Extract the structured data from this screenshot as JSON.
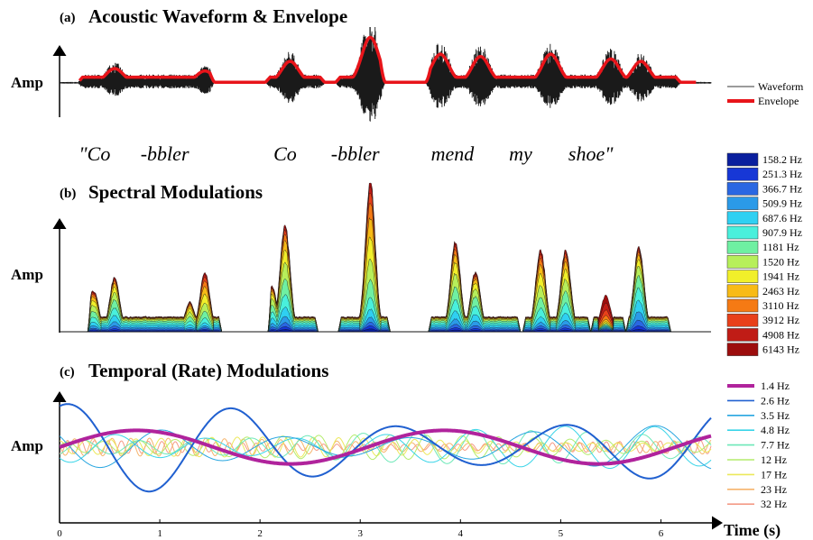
{
  "chart_data": [
    {
      "panel": "a",
      "type": "line",
      "label": "(a)",
      "title": "Acoustic Waveform & Envelope",
      "ylabel": "Amp",
      "legend": [
        "Waveform",
        "Envelope"
      ],
      "legend_position": "right",
      "colors": {
        "waveform": "#1a1a1a",
        "envelope": "#e8141a"
      },
      "words": [
        "\"Co",
        "-bbler",
        "Co",
        "-bbler",
        "mend",
        "my",
        "shoe\""
      ],
      "word_times": [
        0.35,
        1.05,
        2.25,
        2.95,
        3.92,
        4.6,
        5.3
      ],
      "segments": [
        {
          "start": 0.18,
          "end": 1.55,
          "peaks": [
            [
              0.55,
              0.3
            ],
            [
              1.45,
              0.25
            ]
          ]
        },
        {
          "start": 2.05,
          "end": 2.65,
          "peaks": [
            [
              2.3,
              0.45
            ]
          ]
        },
        {
          "start": 2.75,
          "end": 3.25,
          "peaks": [
            [
              3.1,
              0.95
            ]
          ]
        },
        {
          "start": 3.65,
          "end": 6.2,
          "peaks": [
            [
              3.8,
              0.6
            ],
            [
              4.2,
              0.55
            ],
            [
              4.9,
              0.6
            ],
            [
              5.5,
              0.5
            ],
            [
              5.8,
              0.45
            ]
          ]
        }
      ],
      "xlim": [
        0,
        6.5
      ]
    },
    {
      "panel": "b",
      "type": "area",
      "label": "(b)",
      "title": "Spectral Modulations",
      "ylabel": "Amp",
      "legend_position": "right",
      "series": [
        {
          "name": "158.2 Hz",
          "color": "#0a1f9e"
        },
        {
          "name": "251.3 Hz",
          "color": "#1737d6"
        },
        {
          "name": "366.7 Hz",
          "color": "#2a67e2"
        },
        {
          "name": "509.9 Hz",
          "color": "#2b9ae8"
        },
        {
          "name": "687.6 Hz",
          "color": "#2fd0f2"
        },
        {
          "name": "907.9 Hz",
          "color": "#49f0dc"
        },
        {
          "name": "1181 Hz",
          "color": "#6ff0a2"
        },
        {
          "name": "1520 Hz",
          "color": "#b7ef5a"
        },
        {
          "name": "1941 Hz",
          "color": "#f1ef2a"
        },
        {
          "name": "2463 Hz",
          "color": "#f8bb16"
        },
        {
          "name": "3110 Hz",
          "color": "#f57a14"
        },
        {
          "name": "3912 Hz",
          "color": "#e8401a"
        },
        {
          "name": "4908 Hz",
          "color": "#c01c16"
        },
        {
          "name": "6143 Hz",
          "color": "#9c0d0d"
        }
      ],
      "segments": [
        {
          "start": 0.28,
          "end": 1.62,
          "peaks": [
            [
              0.34,
              0.28,
              0.5
            ],
            [
              0.55,
              0.36,
              0.45
            ],
            [
              1.3,
              0.2,
              0.5
            ],
            [
              1.45,
              0.4,
              0.6
            ]
          ]
        },
        {
          "start": 2.08,
          "end": 2.58,
          "peaks": [
            [
              2.12,
              0.3,
              0.45
            ],
            [
              2.25,
              0.72,
              0.5
            ]
          ]
        },
        {
          "start": 2.78,
          "end": 3.3,
          "peaks": [
            [
              3.1,
              1.0,
              0.6
            ]
          ]
        },
        {
          "start": 3.68,
          "end": 4.6,
          "peaks": [
            [
              3.95,
              0.6,
              0.5
            ],
            [
              4.15,
              0.4,
              0.45
            ]
          ]
        },
        {
          "start": 4.62,
          "end": 5.3,
          "peaks": [
            [
              4.8,
              0.55,
              0.55
            ],
            [
              5.05,
              0.55,
              0.5
            ]
          ]
        },
        {
          "start": 5.3,
          "end": 5.65,
          "peaks": [
            [
              5.45,
              0.35,
              1.0
            ]
          ]
        },
        {
          "start": 5.65,
          "end": 6.1,
          "peaks": [
            [
              5.78,
              0.58,
              0.4
            ]
          ]
        }
      ],
      "xlim": [
        0,
        6.5
      ]
    },
    {
      "panel": "c",
      "type": "line",
      "label": "(c)",
      "title": "Temporal (Rate) Modulations",
      "ylabel": "Amp",
      "xlabel": "Time (s)",
      "x_ticks": [
        "0",
        "1",
        "2",
        "3",
        "4",
        "5",
        "6"
      ],
      "xlim": [
        0,
        6.5
      ],
      "legend_position": "right",
      "series": [
        {
          "name": "1.4 Hz",
          "freq": 1.4,
          "amp": 0.3,
          "color": "#b0239c"
        },
        {
          "name": "2.6 Hz",
          "freq": 2.6,
          "amp": 0.8,
          "color": "#2060d0"
        },
        {
          "name": "3.5 Hz",
          "freq": 3.5,
          "amp": 0.4,
          "color": "#28a6e0"
        },
        {
          "name": "4.8 Hz",
          "freq": 4.8,
          "amp": 0.38,
          "color": "#38d4e8"
        },
        {
          "name": "7.7 Hz",
          "freq": 7.7,
          "amp": 0.3,
          "color": "#6ee8b8"
        },
        {
          "name": "12 Hz",
          "freq": 12,
          "amp": 0.22,
          "color": "#b4ec6c"
        },
        {
          "name": "17 Hz",
          "freq": 17,
          "amp": 0.18,
          "color": "#ece85a"
        },
        {
          "name": "23 Hz",
          "freq": 23,
          "amp": 0.16,
          "color": "#f6b46c"
        },
        {
          "name": "32 Hz",
          "freq": 32,
          "amp": 0.12,
          "color": "#f49a86"
        }
      ]
    }
  ]
}
